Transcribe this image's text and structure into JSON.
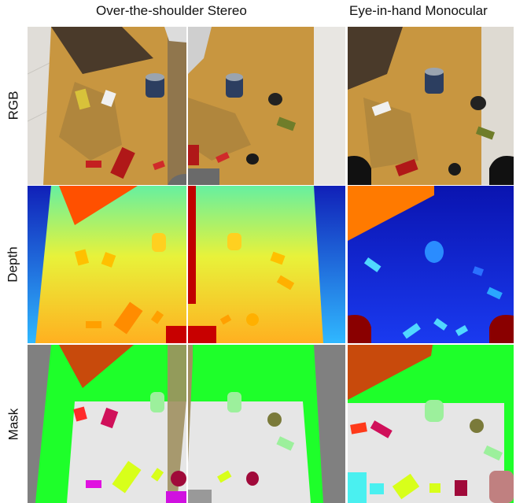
{
  "figure": {
    "column_headers": [
      "Over-the-shoulder Stereo",
      "Eye-in-hand Monocular"
    ],
    "row_labels": [
      "RGB",
      "Depth",
      "Mask"
    ]
  },
  "palette": {
    "table": "#c9953f",
    "depth_far": "#1222c8",
    "depth_near": "#ff5a00",
    "mask_bg": "#808080",
    "mask_table": "#e6e6e6",
    "mask_floor": "#1eff2a",
    "mask_robot": "#c84a0c"
  }
}
